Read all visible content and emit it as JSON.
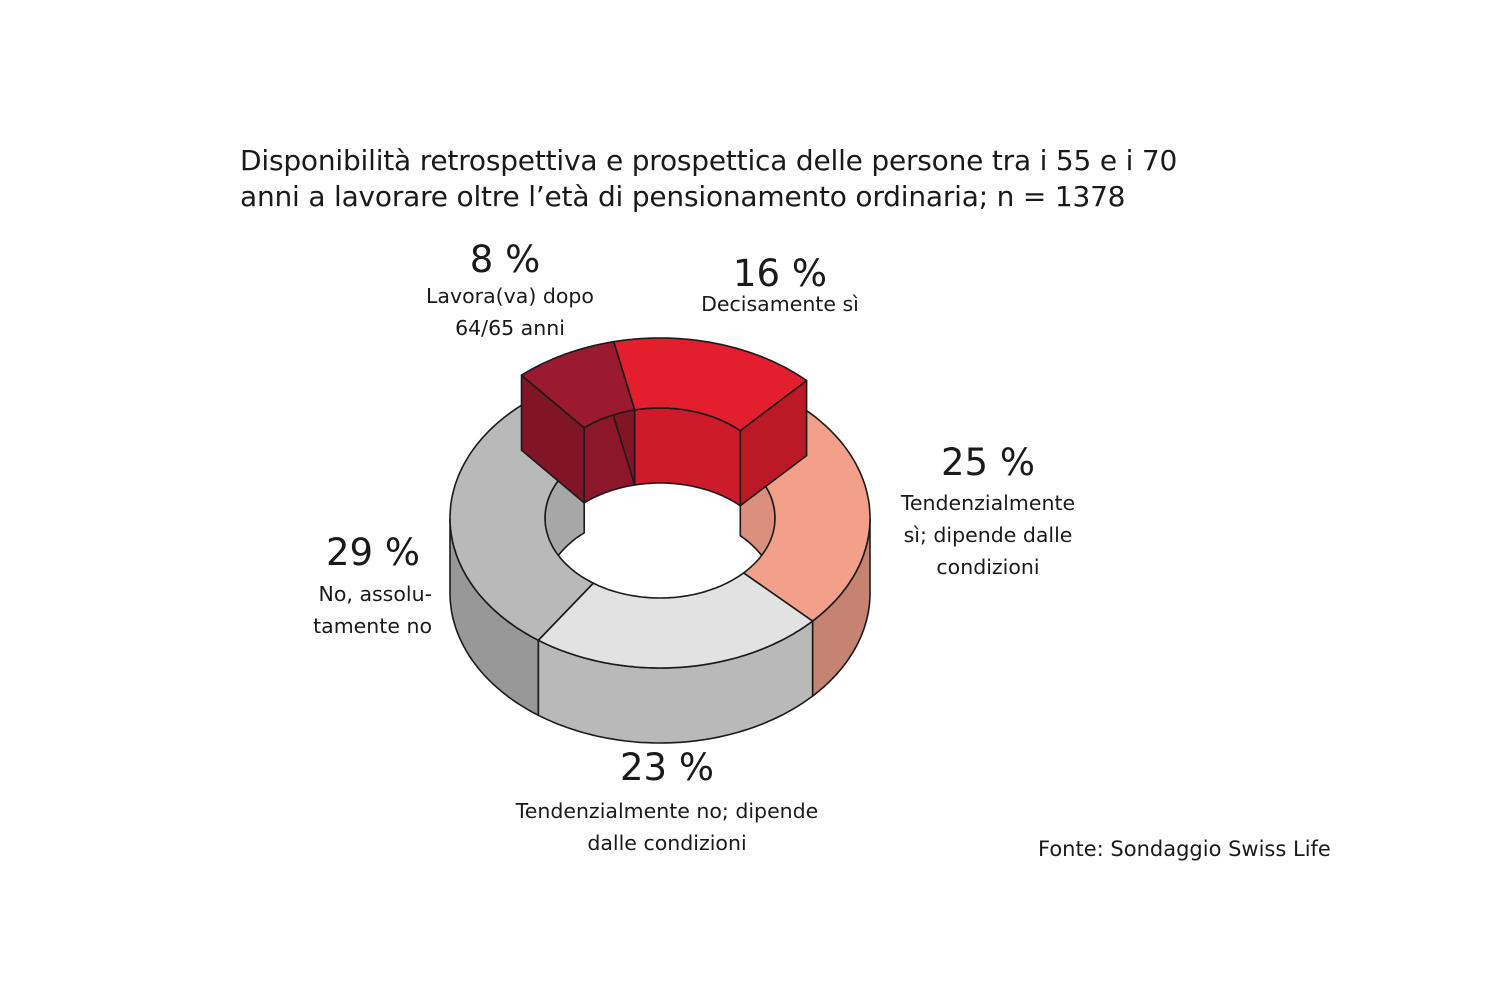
{
  "title_lines": [
    "Disponibilità retrospettiva e prospettica delle persone tra i 55 e i 70",
    "anni a lavorare oltre l’età di pensionamento ordinaria; n = 1378"
  ],
  "source": "Fonte: Sondaggio Swiss Life",
  "chart_data": {
    "type": "pie",
    "style": "3d-donut",
    "title": "Disponibilità retrospettiva e prospettica delle persone tra i 55 e i 70 anni a lavorare oltre l’età di pensionamento ordinaria; n = 1378",
    "categories": [
      "Lavora(va) dopo 64/65 anni",
      "Decisamente sì",
      "Tendenzialmente sì; dipende dalle condizioni",
      "Tendenzialmente no; dipende dalle condizioni",
      "No, assolutamente no"
    ],
    "values": [
      8,
      16,
      25,
      23,
      29
    ],
    "percent_labels": [
      "8 %",
      "16 %",
      "25 %",
      "23 %",
      "29 %"
    ],
    "label_lines": [
      [
        "Lavora(va) dopo",
        "64/65 anni"
      ],
      [
        "Decisamente sì"
      ],
      [
        "Tendenzialmente",
        "sì; dipende dalle",
        "condizioni"
      ],
      [
        "Tendenzialmente no; dipende",
        "dalle condizioni"
      ],
      [
        "No, assolu-",
        "tamente no"
      ]
    ],
    "colors": [
      "#9b1a2f",
      "#e31e2d",
      "#f3a08b",
      "#e1e2e1",
      "#b8b9b8"
    ],
    "exploded": [
      "Lavora(va) dopo 64/65 anni",
      "Decisamente sì"
    ],
    "legend": "none"
  }
}
